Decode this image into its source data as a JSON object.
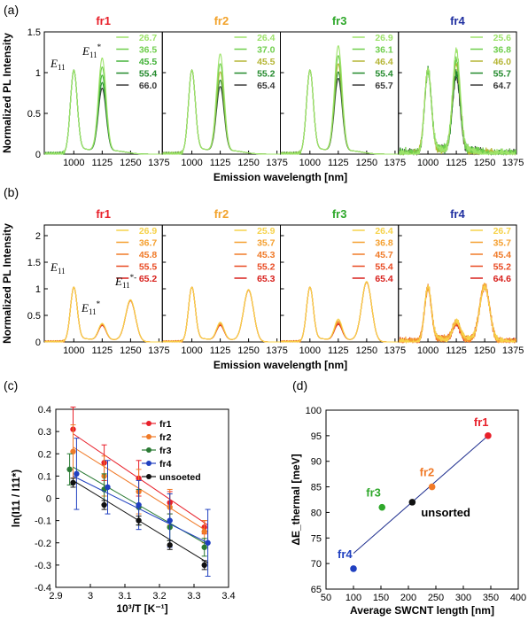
{
  "chart_data": [
    {
      "panel": "(a)",
      "type": "line",
      "ylabel": "Normalized PL Intensity",
      "xlabel": "Emission wavelength [nm]",
      "ylim": [
        0,
        1.5
      ],
      "xlim": [
        870,
        1390
      ],
      "xticks": [
        "1000",
        "1125",
        "1250",
        "1375"
      ],
      "yticks": [
        "0",
        "0.5",
        "1",
        "1.5"
      ],
      "peak_labels": [
        "E11",
        "E11*"
      ],
      "peaks": {
        "E11": 1000,
        "E11*": 1125,
        "E11*-": 1250
      },
      "subpanels": [
        {
          "title": "fr1",
          "title_color": "#e8202a",
          "legend": [
            "26.7",
            "36.5",
            "45.5",
            "55.4",
            "66.0"
          ],
          "colors": [
            "#9de36a",
            "#6fce4d",
            "#44b23a",
            "#238a2c",
            "#3a3a3a"
          ],
          "e11star": [
            1.15,
            1.04,
            0.94,
            0.85,
            0.78
          ],
          "e11star_minus": [
            0,
            0,
            0,
            0,
            0
          ],
          "noise": 0
        },
        {
          "title": "fr2",
          "title_color": "#f2a22a",
          "legend": [
            "26.4",
            "37.0",
            "45.5",
            "55.2",
            "65.4"
          ],
          "colors": [
            "#9de36a",
            "#6fce4d",
            "#b5b534",
            "#238a2c",
            "#3a3a3a"
          ],
          "e11star": [
            1.2,
            1.08,
            0.98,
            0.88,
            0.8
          ],
          "e11star_minus": [
            0,
            0,
            0,
            0,
            0
          ],
          "noise": 0
        },
        {
          "title": "fr3",
          "title_color": "#2fa82b",
          "legend": [
            "26.9",
            "36.1",
            "46.4",
            "55.4",
            "65.7"
          ],
          "colors": [
            "#9de36a",
            "#6fce4d",
            "#b5b534",
            "#238a2c",
            "#3a3a3a"
          ],
          "e11star": [
            1.3,
            1.18,
            1.08,
            0.98,
            0.9
          ],
          "e11star_minus": [
            0,
            0,
            0,
            0,
            0
          ],
          "noise": 0
        },
        {
          "title": "fr4",
          "title_color": "#1f2fa0",
          "legend": [
            "25.6",
            "36.8",
            "46.0",
            "55.7",
            "64.7"
          ],
          "colors": [
            "#9de36a",
            "#6fce4d",
            "#b5b534",
            "#238a2c",
            "#3a3a3a"
          ],
          "e11star": [
            1.26,
            1.15,
            1.05,
            0.98,
            0.93
          ],
          "e11star_minus": [
            0,
            0,
            0,
            0,
            0
          ],
          "noise": 0.05
        }
      ]
    },
    {
      "panel": "(b)",
      "type": "line",
      "ylabel": "Normalized PL Intensity",
      "xlabel": "Emission wavelength [nm]",
      "ylim": [
        0,
        2.2
      ],
      "xlim": [
        870,
        1390
      ],
      "xticks": [
        "1000",
        "1125",
        "1250",
        "1375"
      ],
      "yticks": [
        "0",
        "0.5",
        "1",
        "1.5",
        "2"
      ],
      "peak_labels": [
        "E11",
        "E11*",
        "E11*-"
      ],
      "subpanels": [
        {
          "title": "fr1",
          "title_color": "#e8202a",
          "legend": [
            "26.9",
            "36.7",
            "45.8",
            "55.5",
            "65.2"
          ],
          "colors": [
            "#f6d24a",
            "#f5a030",
            "#f07a28",
            "#e84a22",
            "#d8201c"
          ],
          "e11star": [
            0.32,
            0.31,
            0.3,
            0.29,
            0.28
          ],
          "e11star_minus": [
            0.78,
            0.77,
            0.77,
            0.76,
            0.76
          ],
          "noise": 0
        },
        {
          "title": "fr2",
          "title_color": "#f2a22a",
          "legend": [
            "25.9",
            "35.7",
            "45.3",
            "55.2",
            "65.3"
          ],
          "colors": [
            "#f6d24a",
            "#f5a030",
            "#f07a28",
            "#e84a22",
            "#d8201c"
          ],
          "e11star": [
            0.34,
            0.32,
            0.3,
            0.29,
            0.28
          ],
          "e11star_minus": [
            0.97,
            0.97,
            0.96,
            0.96,
            0.96
          ],
          "noise": 0
        },
        {
          "title": "fr3",
          "title_color": "#2fa82b",
          "legend": [
            "26.4",
            "36.8",
            "45.7",
            "55.4",
            "65.4"
          ],
          "colors": [
            "#f6d24a",
            "#f5a030",
            "#f07a28",
            "#e84a22",
            "#d8201c"
          ],
          "e11star": [
            0.4,
            0.37,
            0.34,
            0.32,
            0.3
          ],
          "e11star_minus": [
            1.12,
            1.12,
            1.11,
            1.11,
            1.11
          ],
          "noise": 0
        },
        {
          "title": "fr4",
          "title_color": "#1f2fa0",
          "legend": [
            "26.7",
            "35.7",
            "45.4",
            "55.2",
            "64.6"
          ],
          "colors": [
            "#f6d24a",
            "#f5a030",
            "#f07a28",
            "#e84a22",
            "#d8201c"
          ],
          "e11star": [
            0.38,
            0.36,
            0.34,
            0.33,
            0.32
          ],
          "e11star_minus": [
            1.05,
            1.05,
            1.04,
            1.04,
            1.04
          ],
          "noise": 0.06
        }
      ]
    },
    {
      "panel": "(c)",
      "type": "scatter",
      "xlabel": "10³/T [K⁻¹]",
      "ylabel": "ln(I11 / I11*)",
      "xlim": [
        2.9,
        3.4
      ],
      "ylim": [
        -0.4,
        0.4
      ],
      "xticks": [
        "2.9",
        "3",
        "3.1",
        "3.2",
        "3.3",
        "3.4"
      ],
      "yticks": [
        "0.4",
        "0.3",
        "0.2",
        "0.1",
        "0",
        "-0.1",
        "-0.2",
        "-0.3",
        "-0.4"
      ],
      "legend_position": "top-right",
      "series": [
        {
          "name": "fr1",
          "color": "#e8202a",
          "x": [
            2.95,
            3.04,
            3.14,
            3.23,
            3.33
          ],
          "y": [
            0.31,
            0.16,
            0.09,
            -0.02,
            -0.13
          ],
          "err": [
            0.1,
            0.08,
            0.08,
            0.05,
            0.03
          ],
          "fit": [
            [
              2.95,
              0.29
            ],
            [
              3.34,
              -0.12
            ]
          ]
        },
        {
          "name": "fr2",
          "color": "#f07a28",
          "x": [
            2.95,
            3.04,
            3.14,
            3.23,
            3.33
          ],
          "y": [
            0.21,
            0.1,
            0.03,
            -0.04,
            -0.15
          ],
          "err": [
            0.12,
            0.09,
            0.1,
            0.08,
            0.05
          ],
          "fit": [
            [
              2.95,
              0.23
            ],
            [
              3.34,
              -0.15
            ]
          ]
        },
        {
          "name": "fr3",
          "color": "#2a7a34",
          "x": [
            2.94,
            3.04,
            3.14,
            3.23,
            3.33
          ],
          "y": [
            0.13,
            0.04,
            -0.04,
            -0.13,
            -0.22
          ],
          "err": [
            0.07,
            0.07,
            0.08,
            0.06,
            0.04
          ],
          "fit": [
            [
              2.95,
              0.14
            ],
            [
              3.34,
              -0.21
            ]
          ]
        },
        {
          "name": "fr4",
          "color": "#2040c0",
          "x": [
            2.96,
            3.05,
            3.14,
            3.23,
            3.34
          ],
          "y": [
            0.11,
            0.05,
            -0.03,
            -0.1,
            -0.2
          ],
          "err": [
            0.16,
            0.12,
            0.11,
            0.12,
            0.15
          ],
          "fit": [
            [
              2.95,
              0.1
            ],
            [
              3.34,
              -0.2
            ]
          ]
        },
        {
          "name": "unsoeted",
          "color": "#111111",
          "x": [
            2.95,
            3.04,
            3.14,
            3.23,
            3.33
          ],
          "y": [
            0.07,
            -0.03,
            -0.1,
            -0.21,
            -0.3
          ],
          "err": [
            0.02,
            0.02,
            0.02,
            0.02,
            0.02
          ],
          "fit": [
            [
              2.95,
              0.08
            ],
            [
              3.34,
              -0.29
            ]
          ]
        }
      ]
    },
    {
      "panel": "(d)",
      "type": "scatter",
      "xlabel": "Average SWCNT length [nm]",
      "ylabel": "ΔE_thermal [meV]",
      "xlim": [
        50,
        400
      ],
      "ylim": [
        65,
        100
      ],
      "xticks": [
        "50",
        "100",
        "150",
        "200",
        "250",
        "300",
        "350",
        "400"
      ],
      "yticks": [
        "100",
        "95",
        "90",
        "85",
        "80",
        "75",
        "70",
        "65"
      ],
      "points": [
        {
          "label": "fr1",
          "color": "#e8202a",
          "x": 345,
          "y": 95
        },
        {
          "label": "fr2",
          "color": "#f07a28",
          "x": 243,
          "y": 85
        },
        {
          "label": "fr3",
          "color": "#2fa82b",
          "x": 152,
          "y": 81
        },
        {
          "label": "unsorted",
          "color": "#111111",
          "x": 207,
          "y": 82
        },
        {
          "label": "fr4",
          "color": "#2040c0",
          "x": 100,
          "y": 69
        }
      ],
      "fit": [
        [
          100,
          72
        ],
        [
          345,
          95
        ]
      ]
    }
  ]
}
